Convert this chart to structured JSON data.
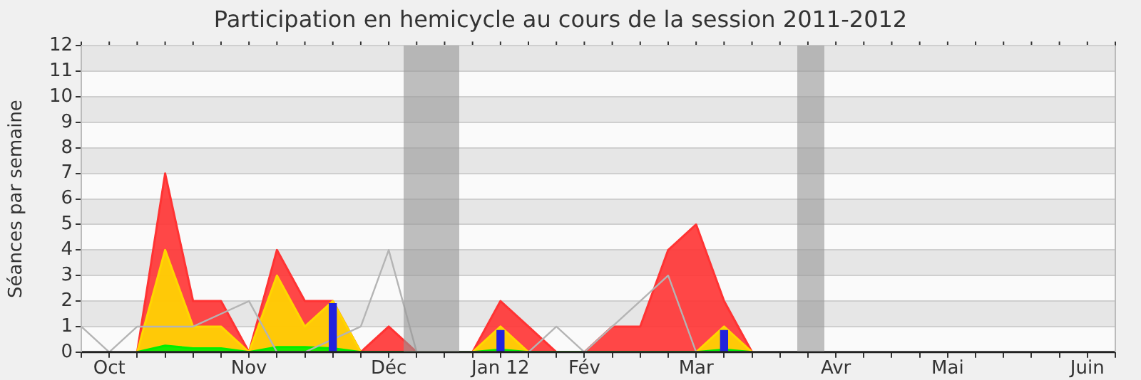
{
  "chart_data": {
    "type": "area",
    "title": "Participation en hemicycle au cours de la session 2011-2012",
    "ylabel": "Séances par semaine",
    "categories": [
      null,
      "Oct",
      null,
      null,
      null,
      null,
      "Nov",
      null,
      null,
      null,
      null,
      "Déc",
      null,
      null,
      null,
      "Jan 12",
      null,
      null,
      "Fév",
      null,
      null,
      null,
      "Mar",
      null,
      null,
      null,
      null,
      "Avr",
      null,
      null,
      null,
      "Mai",
      null,
      null,
      null,
      null,
      "Juin",
      null
    ],
    "series": [
      {
        "color": "#ff3333",
        "values": [
          null,
          null,
          0,
          7,
          2,
          2,
          0,
          4,
          2,
          2,
          0,
          1,
          0,
          0,
          0,
          2,
          1,
          0,
          0,
          1,
          1,
          4,
          5,
          2,
          0,
          null,
          null,
          null,
          null,
          null,
          null,
          null,
          null,
          null,
          null,
          null,
          null,
          null
        ]
      },
      {
        "color": "#ffd700",
        "values": [
          null,
          null,
          0,
          4,
          1,
          1,
          0,
          3,
          1,
          2,
          0,
          0,
          0,
          0,
          0,
          1,
          0,
          0,
          0,
          0,
          0,
          0,
          0,
          1,
          0,
          null,
          null,
          null,
          null,
          null,
          null,
          null,
          null,
          null,
          null,
          null,
          null,
          null
        ]
      },
      {
        "color": "#00ee00",
        "values": [
          null,
          null,
          0,
          0.25,
          0.15,
          0.15,
          0,
          0.2,
          0.2,
          0.15,
          0,
          0,
          0,
          0,
          0,
          0.1,
          0,
          0,
          0,
          0,
          0,
          0,
          0,
          0.1,
          0,
          null,
          null,
          null,
          null,
          null,
          null,
          null,
          null,
          null,
          null,
          null,
          null,
          null
        ]
      },
      {
        "type": "line",
        "color": "#b4b4b4",
        "values": [
          1,
          0,
          1,
          1,
          1,
          1.5,
          2,
          0,
          0,
          0.5,
          1,
          4,
          0,
          0,
          0,
          0,
          0,
          1,
          0,
          1,
          2,
          3,
          0,
          0,
          0,
          null,
          null,
          null,
          null,
          null,
          null,
          null,
          null,
          null,
          null,
          null,
          null,
          null
        ]
      },
      {
        "type": "bar",
        "color": "#2222dd",
        "values": [
          null,
          null,
          null,
          null,
          null,
          null,
          null,
          null,
          null,
          1.9,
          null,
          null,
          null,
          null,
          null,
          0.85,
          null,
          null,
          null,
          null,
          null,
          null,
          null,
          0.85,
          null,
          null,
          null,
          null,
          null,
          null,
          null,
          null,
          null,
          null,
          null,
          null,
          null,
          null
        ]
      }
    ],
    "ylim": [
      0,
      12
    ],
    "yticks": [
      0,
      1,
      2,
      3,
      4,
      5,
      6,
      7,
      8,
      9,
      10,
      11,
      12
    ],
    "grid": "y",
    "legend": false,
    "marker": "none"
  }
}
